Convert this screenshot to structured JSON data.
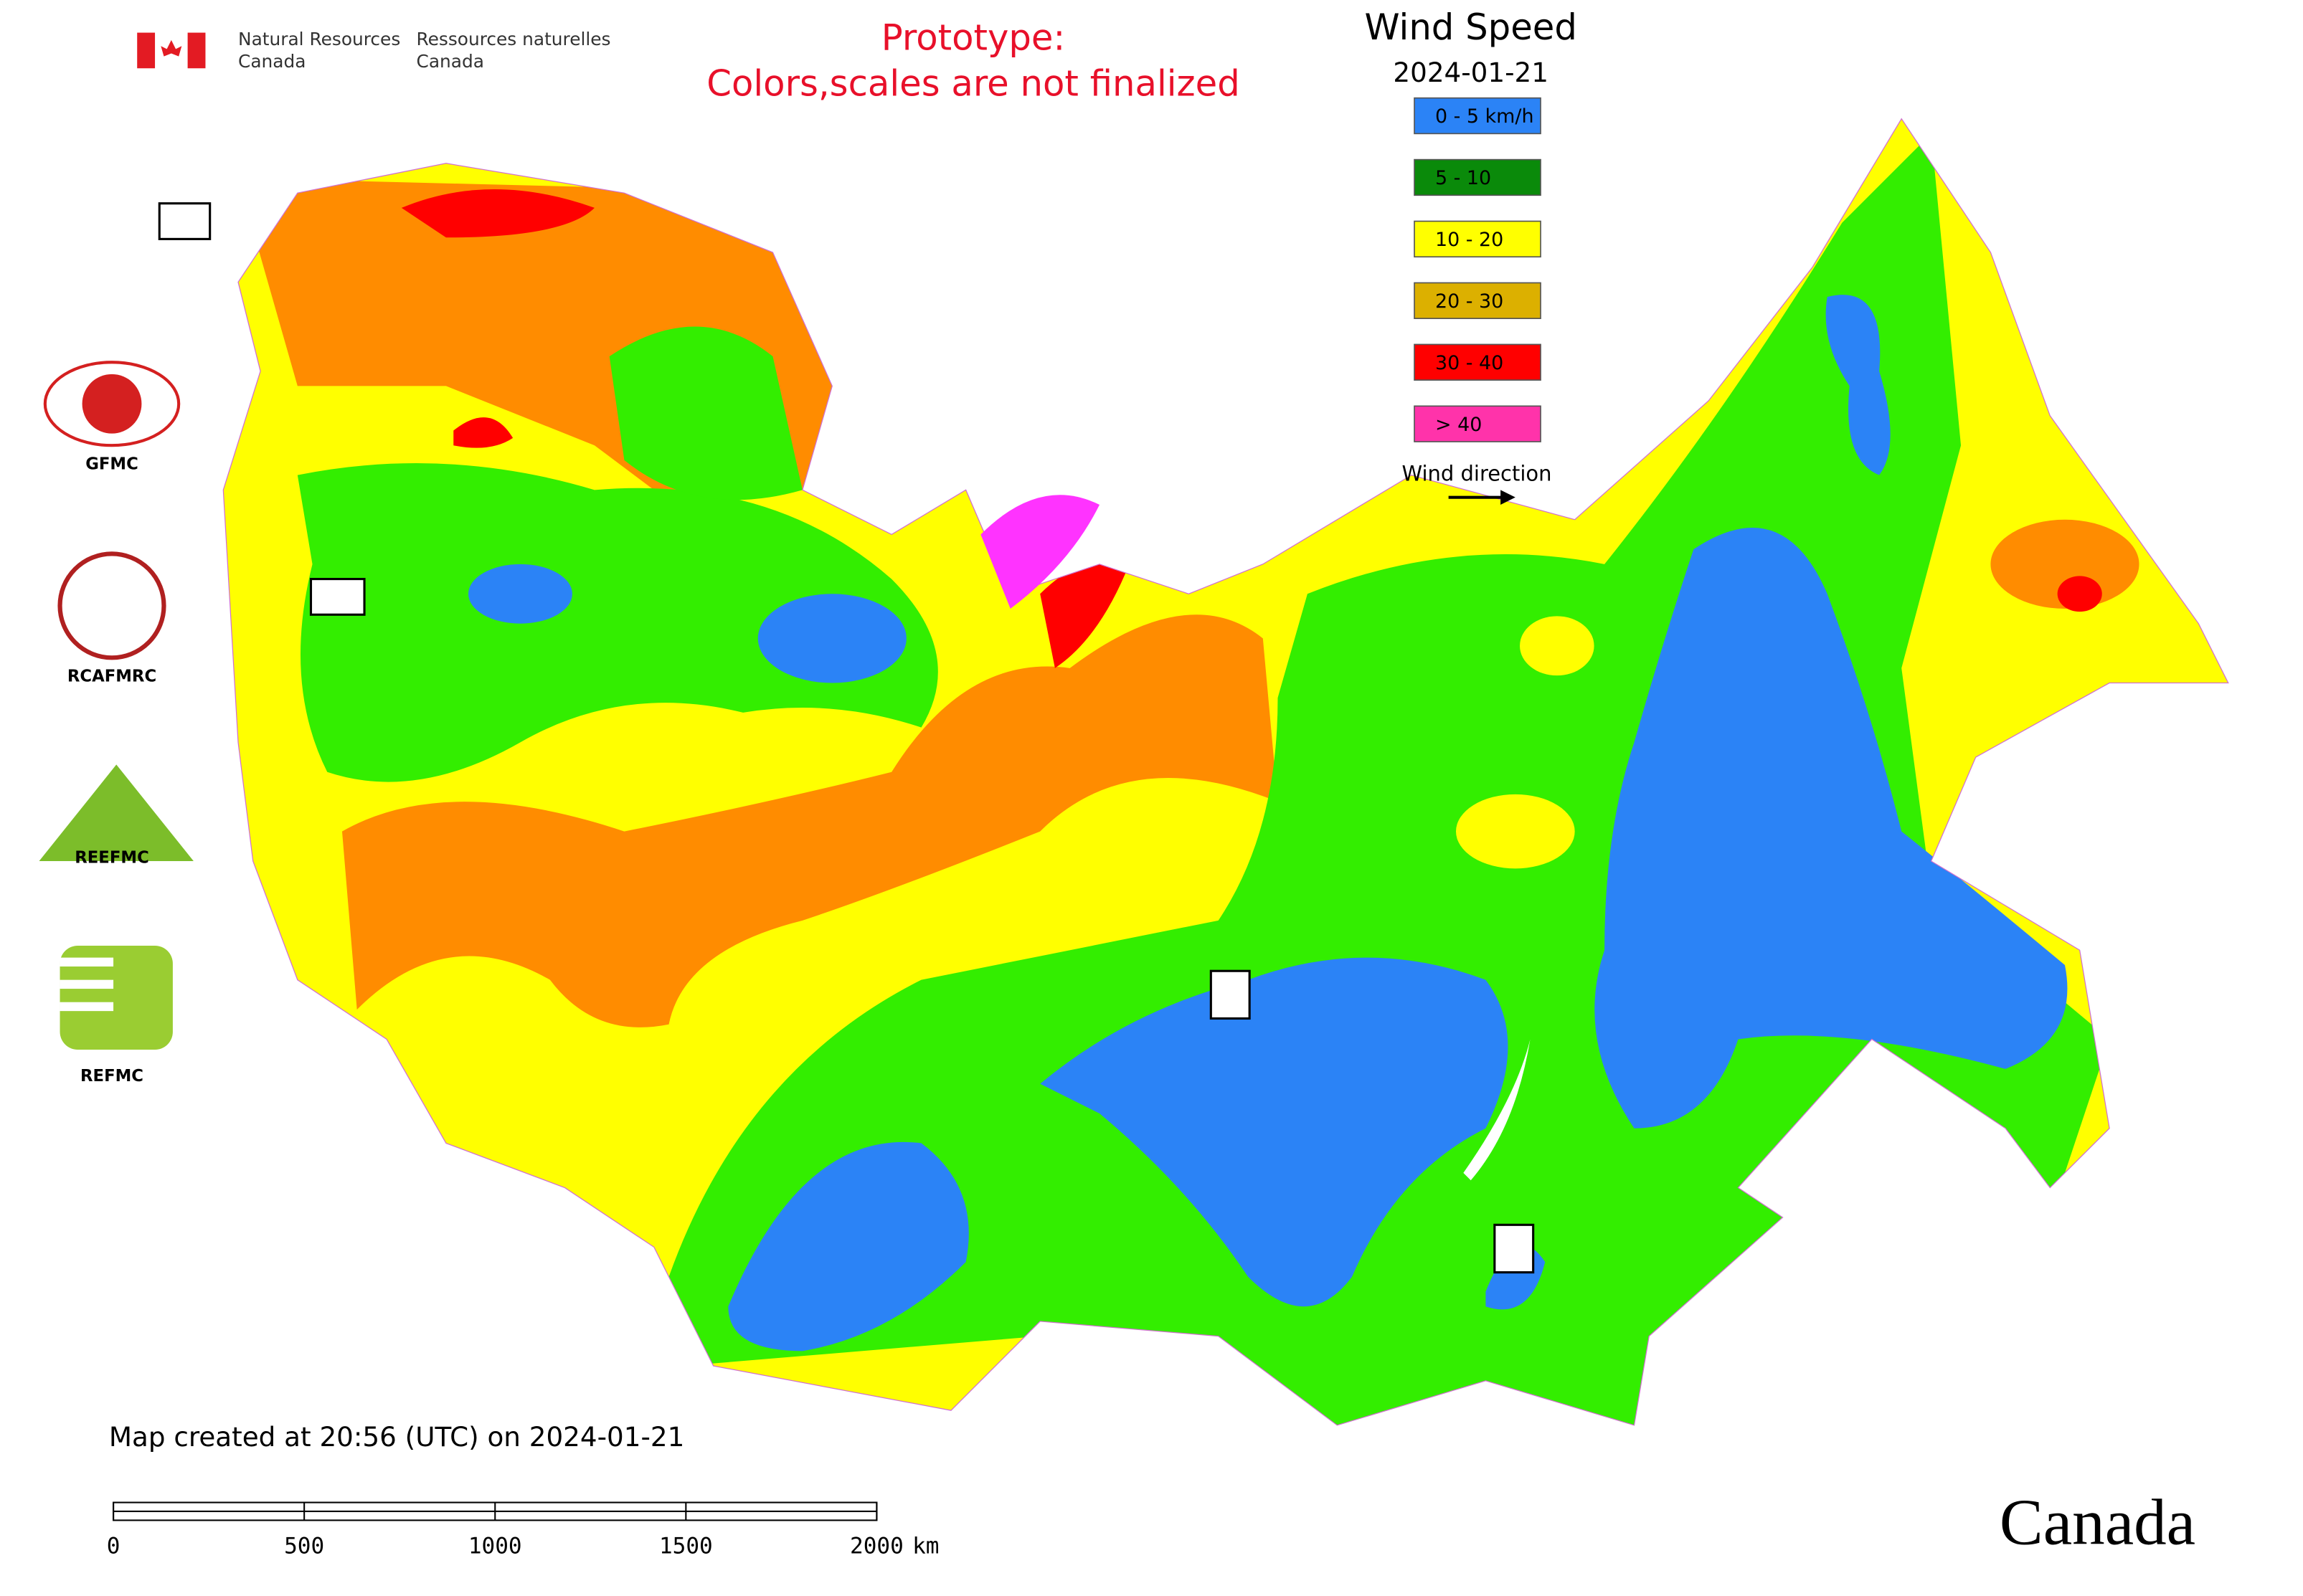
{
  "header": {
    "agency_en_line1": "Natural Resources",
    "agency_en_line2": "Canada",
    "agency_fr_line1": "Ressources naturelles",
    "agency_fr_line2": "Canada"
  },
  "notice": {
    "line1": "Prototype:",
    "line2": "Colors,scales are not finalized"
  },
  "legend": {
    "title": "Wind Speed",
    "date": "2024-01-21",
    "items": [
      {
        "label": "0 - 5 km/h",
        "color": "#2b83f6"
      },
      {
        "label": "5 - 10",
        "color": "#0a8a0a"
      },
      {
        "label": "10 - 20",
        "color": "#ffff00"
      },
      {
        "label": "20 - 30",
        "color": "#dcb000"
      },
      {
        "label": "30 - 40",
        "color": "#ff0000"
      },
      {
        "label": "> 40",
        "color": "#ff33aa"
      }
    ],
    "wind_direction": "Wind direction"
  },
  "logos": [
    "GFMC",
    "RCAFMRC",
    "REEFMC",
    "REFMC"
  ],
  "footer": {
    "created": "Map created at 20:56 (UTC) on 2024-01-21",
    "scale_ticks": [
      0,
      500,
      1000,
      1500,
      2000
    ],
    "scale_unit": "km",
    "wordmark": "Canada"
  }
}
